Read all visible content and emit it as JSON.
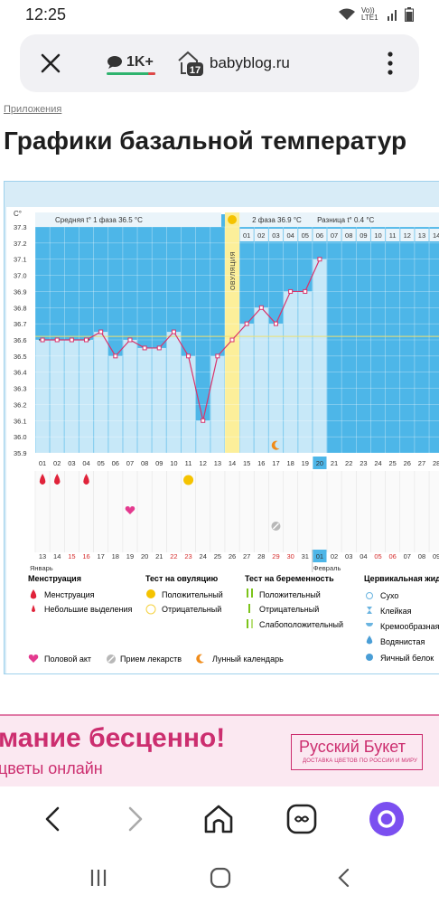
{
  "status_bar": {
    "time": "12:25",
    "network": "Vo)) LTE1"
  },
  "browser_bar": {
    "comments_count": "1K+",
    "tab_count": "17",
    "url": "babyblog.ru"
  },
  "article": {
    "breadcrumb": "Приложения",
    "title": "Графики базальной температур"
  },
  "chart": {
    "unit": "C°",
    "phase1_label": "Средняя t° 1 фаза",
    "phase1_value": "36.5 °C",
    "phase2_label": "2 фаза",
    "phase2_value": "36.9 °C",
    "diff_label": "Разница",
    "diff_value": "0.4 °C",
    "ovulation_label": "ОВУЛЯЦИЯ",
    "y_ticks": [
      "37.3",
      "37.2",
      "37.1",
      "37.0",
      "36.9",
      "36.8",
      "36.7",
      "36.6",
      "36.5",
      "36.4",
      "36.3",
      "36.2",
      "36.1",
      "36.0",
      "35.9"
    ],
    "cycle_days": [
      "01",
      "02",
      "03",
      "04",
      "05",
      "06",
      "07",
      "08",
      "09",
      "10",
      "11",
      "12",
      "13",
      "14",
      "15",
      "16",
      "17",
      "18",
      "19",
      "20",
      "21",
      "22",
      "23",
      "24",
      "25",
      "26",
      "27",
      "28"
    ],
    "phase2_days": [
      "01",
      "02",
      "03",
      "04",
      "05",
      "06",
      "07",
      "08",
      "09",
      "10",
      "11",
      "12",
      "13",
      "14"
    ],
    "dates": [
      "13",
      "14",
      "15",
      "16",
      "17",
      "18",
      "19",
      "20",
      "21",
      "22",
      "23",
      "24",
      "25",
      "26",
      "27",
      "28",
      "29",
      "30",
      "31",
      "01",
      "02",
      "03",
      "04",
      "05",
      "06",
      "07",
      "08",
      "09"
    ],
    "weekend_dates": [
      "15",
      "16",
      "22",
      "23",
      "29",
      "30",
      "05",
      "06"
    ],
    "month1": "Январь",
    "month2": "Февраль",
    "current_day": "20",
    "highlight_date": "01"
  },
  "chart_data": {
    "type": "line",
    "x": [
      1,
      2,
      3,
      4,
      5,
      6,
      7,
      8,
      9,
      10,
      11,
      12,
      13,
      14,
      15,
      16,
      17,
      18,
      19,
      20
    ],
    "series": [
      {
        "values": [
          36.6,
          36.6,
          36.6,
          36.6,
          36.65,
          36.5,
          36.6,
          36.55,
          36.55,
          36.65,
          36.5,
          36.1,
          36.5,
          36.6,
          36.7,
          36.8,
          36.7,
          36.9,
          36.9,
          37.1
        ]
      }
    ],
    "coverline": 36.65,
    "ylim": [
      35.9,
      37.3
    ],
    "xlabel": "",
    "ylabel": "C°",
    "ovulation_day": 14,
    "menstruation_days": [
      1,
      2,
      4
    ],
    "ovulation_test_positive_day": 11,
    "intercourse_day": 7,
    "medication_day": 17,
    "lunar_calendar_day": 17
  },
  "legend": {
    "menstruation_head": "Менструация",
    "menstruation": "Менструация",
    "spotting": "Небольшие выделения",
    "ovtest_head": "Тест на овуляцию",
    "ovtest_pos": "Положительный",
    "ovtest_neg": "Отрицательный",
    "pregtest_head": "Тест на беременность",
    "pregtest_pos": "Положительный",
    "pregtest_neg": "Отрицательный",
    "pregtest_weak": "Слабоположительный",
    "cervical_head": "Цервикальная жид",
    "cervical_dry": "Сухо",
    "cervical_sticky": "Клейкая",
    "cervical_creamy": "Кремообразная",
    "cervical_watery": "Водянистая",
    "cervical_eggwhite": "Яичный белок",
    "intercourse": "Половой акт",
    "medication": "Прием лекарств",
    "lunar": "Лунный календарь"
  },
  "ad": {
    "headline": "мание бесценно!",
    "subline": "цветы онлайн",
    "brand": "Русский Букет",
    "brand_sub": "ДОСТАВКА ЦВЕТОВ ПО РОССИИ И МИРУ"
  },
  "colors": {
    "sky": "#4db6e8",
    "light_col": "#c7e8f8",
    "ovulation": "#fcef9a",
    "line": "#d9336b",
    "accent": "#7b4ff0"
  }
}
